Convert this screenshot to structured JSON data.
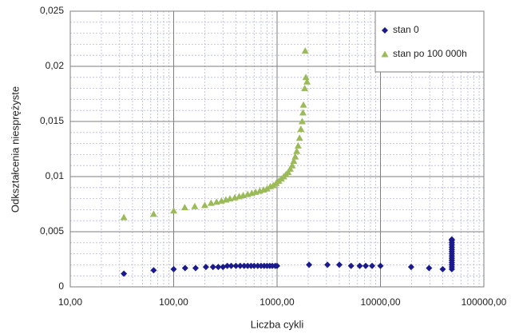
{
  "chart_data": {
    "type": "scatter",
    "x_label": "Liczba cykli",
    "y_label": "Odkształcenia niesprężyste",
    "xscale": "log",
    "xlim": [
      10,
      100000
    ],
    "xticks": [
      {
        "value": 10,
        "label": "10,00"
      },
      {
        "value": 100,
        "label": "100,00"
      },
      {
        "value": 1000,
        "label": "1000,00"
      },
      {
        "value": 10000,
        "label": "10000,00"
      },
      {
        "value": 100000,
        "label": "100000,00"
      }
    ],
    "ylim": [
      0,
      0.025
    ],
    "yticks": [
      0,
      {
        "value": 0.005,
        "label": "0,005"
      },
      {
        "value": 0.01,
        "label": "0,01"
      },
      {
        "value": 0.015,
        "label": "0,015"
      },
      {
        "value": 0.02,
        "label": "0,02"
      },
      {
        "value": 0.025,
        "label": "0,025"
      }
    ],
    "grid": true,
    "minor_grid": true,
    "legend": "upper right",
    "series": [
      {
        "name": "stan 0",
        "color": "#1a1a8c",
        "marker": "diamond",
        "x": [
          33,
          64,
          100,
          129,
          163,
          205,
          240,
          270,
          300,
          330,
          360,
          400,
          440,
          480,
          520,
          560,
          600,
          650,
          700,
          750,
          800,
          850,
          900,
          960,
          1000,
          2040,
          3070,
          4000,
          5200,
          6300,
          7200,
          8300,
          10000,
          19800,
          29500,
          40000,
          49000,
          49000,
          49000,
          49000,
          49000,
          49000,
          49000,
          49000,
          49000,
          49000,
          49000,
          49000,
          49000,
          49000,
          49000
        ],
        "values": [
          0.0012,
          0.0015,
          0.0016,
          0.0017,
          0.0017,
          0.0018,
          0.0018,
          0.0018,
          0.0018,
          0.0019,
          0.0019,
          0.0019,
          0.0019,
          0.0019,
          0.0019,
          0.0019,
          0.0019,
          0.0019,
          0.0019,
          0.0019,
          0.0019,
          0.0019,
          0.0019,
          0.0019,
          0.0019,
          0.002,
          0.002,
          0.002,
          0.0019,
          0.0019,
          0.0019,
          0.0019,
          0.0019,
          0.0018,
          0.0017,
          0.0016,
          0.0016,
          0.0018,
          0.002,
          0.0022,
          0.0024,
          0.0026,
          0.0028,
          0.003,
          0.0032,
          0.0034,
          0.0036,
          0.0038,
          0.004,
          0.0042,
          0.0043
        ]
      },
      {
        "name": "stan po 100 000h",
        "color": "#9bbb59",
        "marker": "triangle",
        "x": [
          33,
          64,
          100,
          128,
          160,
          200,
          230,
          260,
          290,
          320,
          350,
          390,
          430,
          470,
          520,
          570,
          620,
          680,
          740,
          800,
          860,
          920,
          980,
          1040,
          1100,
          1160,
          1220,
          1280,
          1340,
          1400,
          1450,
          1500,
          1550,
          1600,
          1650,
          1700,
          1750,
          1780,
          1800,
          1850,
          1900,
          1950,
          1870
        ],
        "values": [
          0.0063,
          0.0066,
          0.0069,
          0.0072,
          0.0073,
          0.0074,
          0.0076,
          0.0077,
          0.0078,
          0.0079,
          0.008,
          0.0081,
          0.0082,
          0.0083,
          0.0084,
          0.0085,
          0.0086,
          0.0087,
          0.0088,
          0.0089,
          0.0091,
          0.0092,
          0.0094,
          0.0096,
          0.0098,
          0.01,
          0.0102,
          0.0104,
          0.0107,
          0.011,
          0.0114,
          0.0118,
          0.0123,
          0.0128,
          0.0135,
          0.0143,
          0.015,
          0.0158,
          0.0165,
          0.018,
          0.019,
          0.0186,
          0.0214
        ]
      }
    ]
  }
}
